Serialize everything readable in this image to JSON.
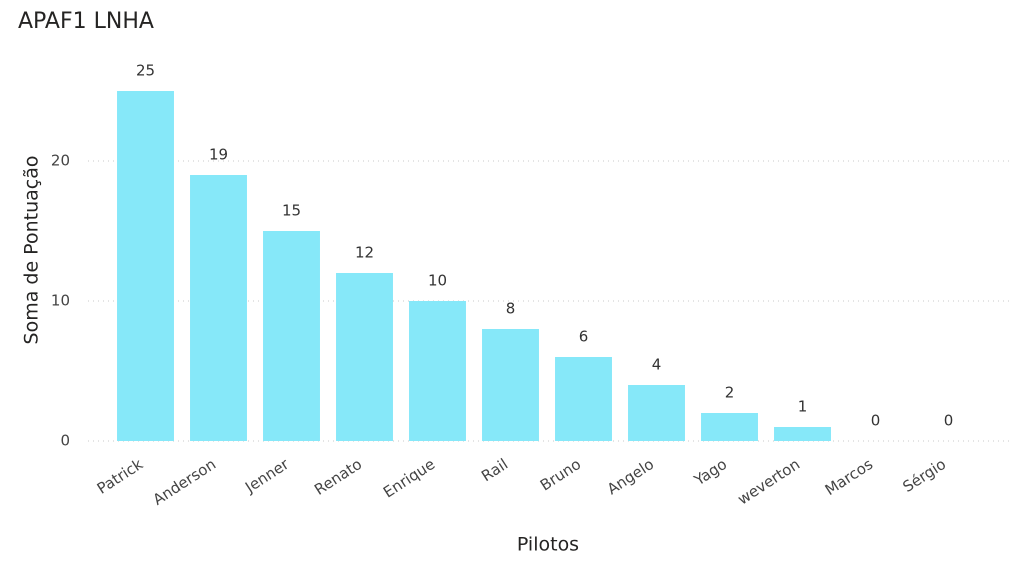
{
  "chart_data": {
    "type": "bar",
    "title": "APAF1 LNHA",
    "x_label": "Pilotos",
    "y_label": "Soma de Pontuação",
    "categories": [
      "Patrick",
      "Anderson",
      "Jenner",
      "Renato",
      "Enrique",
      "Rail",
      "Bruno",
      "Angelo",
      "Yago",
      "weverton",
      "Marcos",
      "Sérgio"
    ],
    "values": [
      25,
      19,
      15,
      12,
      10,
      8,
      6,
      4,
      2,
      1,
      0,
      0
    ],
    "color": "#86e8f9",
    "ylim": [
      0,
      27
    ],
    "yticks": [
      0,
      10,
      20
    ],
    "grid": true
  }
}
